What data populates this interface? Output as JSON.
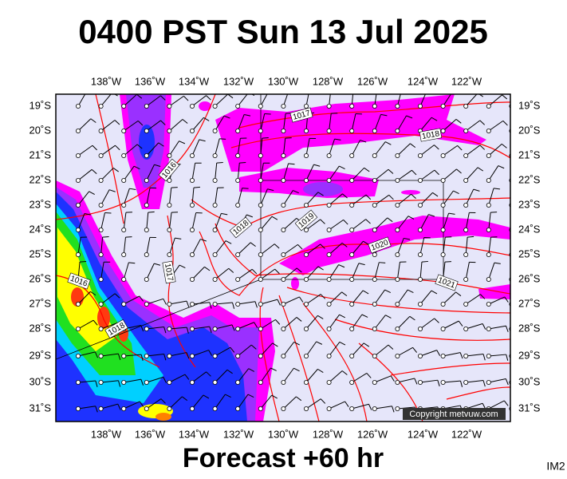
{
  "header": {
    "title": "0400 PST Sun 13 Jul 2025"
  },
  "map": {
    "longitudes": [
      "138˚W",
      "136˚W",
      "134˚W",
      "132˚W",
      "130˚W",
      "128˚W",
      "126˚W",
      "124˚W",
      "122˚W"
    ],
    "latitudes": [
      "19˚S",
      "20˚S",
      "21˚S",
      "22˚S",
      "23˚S",
      "24˚S",
      "25˚S",
      "26˚S",
      "27˚S",
      "28˚S",
      "29˚S",
      "30˚S",
      "31˚S"
    ],
    "isobar_labels": [
      "1017",
      "1018",
      "1016",
      "1018",
      "1019",
      "1020",
      "1021",
      "1017",
      "1016",
      "1018"
    ],
    "copyright": "Copyright metvuw.com"
  },
  "footer": {
    "forecast": "Forecast +60 hr",
    "image_id": "IM2"
  }
}
